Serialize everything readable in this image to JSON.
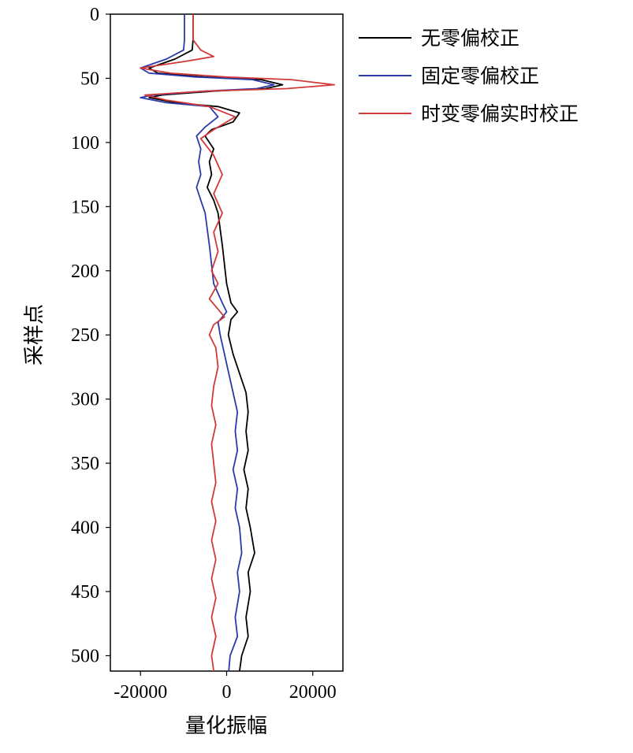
{
  "chart_data": {
    "type": "line",
    "orientation": "vertical-trace",
    "xlabel": "量化振幅",
    "ylabel": "采样点",
    "xlim": [
      -27000,
      27000
    ],
    "ylim": [
      0,
      512
    ],
    "y_inverted": true,
    "x_ticks": [
      -20000,
      0,
      20000
    ],
    "x_tick_labels": [
      "-20000",
      "0",
      "20000"
    ],
    "y_ticks": [
      0,
      50,
      100,
      150,
      200,
      250,
      300,
      350,
      400,
      450,
      500
    ],
    "y_tick_labels": [
      "0",
      "50",
      "100",
      "150",
      "200",
      "250",
      "300",
      "350",
      "400",
      "450",
      "500"
    ],
    "legend_position": "right",
    "grid": false,
    "series": [
      {
        "name": "无零偏校正",
        "color": "#000000",
        "points": [
          [
            -7800,
            0
          ],
          [
            -7800,
            20
          ],
          [
            -8000,
            28
          ],
          [
            -12000,
            35
          ],
          [
            -18000,
            42
          ],
          [
            -16000,
            46
          ],
          [
            -5000,
            49
          ],
          [
            8000,
            51
          ],
          [
            13000,
            55
          ],
          [
            9000,
            58
          ],
          [
            -3000,
            60
          ],
          [
            -15000,
            63
          ],
          [
            -18000,
            65
          ],
          [
            -12000,
            69
          ],
          [
            -2000,
            72
          ],
          [
            3000,
            77
          ],
          [
            1500,
            84
          ],
          [
            -3500,
            90
          ],
          [
            -5000,
            95
          ],
          [
            -3000,
            105
          ],
          [
            -4000,
            115
          ],
          [
            -3500,
            125
          ],
          [
            -4500,
            135
          ],
          [
            -3000,
            145
          ],
          [
            -2000,
            155
          ],
          [
            -1000,
            180
          ],
          [
            0,
            210
          ],
          [
            1000,
            225
          ],
          [
            2500,
            232
          ],
          [
            1000,
            238
          ],
          [
            400,
            250
          ],
          [
            1500,
            265
          ],
          [
            3000,
            280
          ],
          [
            4500,
            295
          ],
          [
            5000,
            310
          ],
          [
            4500,
            325
          ],
          [
            5000,
            340
          ],
          [
            4000,
            355
          ],
          [
            5000,
            370
          ],
          [
            4500,
            385
          ],
          [
            5500,
            400
          ],
          [
            6500,
            420
          ],
          [
            5000,
            435
          ],
          [
            5500,
            450
          ],
          [
            4500,
            470
          ],
          [
            5000,
            485
          ],
          [
            3500,
            500
          ],
          [
            3000,
            512
          ]
        ]
      },
      {
        "name": "固定零偏校正",
        "color": "#2b3aa8",
        "points": [
          [
            -9800,
            0
          ],
          [
            -9800,
            20
          ],
          [
            -10000,
            28
          ],
          [
            -14000,
            35
          ],
          [
            -20000,
            42
          ],
          [
            -18000,
            46
          ],
          [
            -7000,
            49
          ],
          [
            6000,
            51
          ],
          [
            11000,
            55
          ],
          [
            7000,
            58
          ],
          [
            -5000,
            60
          ],
          [
            -17000,
            63
          ],
          [
            -20000,
            65
          ],
          [
            -14000,
            69
          ],
          [
            -4000,
            72
          ],
          [
            -2000,
            80
          ],
          [
            -5000,
            88
          ],
          [
            -7000,
            95
          ],
          [
            -6000,
            105
          ],
          [
            -6500,
            115
          ],
          [
            -6000,
            125
          ],
          [
            -7000,
            135
          ],
          [
            -6000,
            145
          ],
          [
            -5000,
            155
          ],
          [
            -4000,
            180
          ],
          [
            -3000,
            210
          ],
          [
            -1000,
            225
          ],
          [
            0,
            232
          ],
          [
            -2000,
            240
          ],
          [
            -1500,
            250
          ],
          [
            -500,
            265
          ],
          [
            500,
            280
          ],
          [
            1500,
            295
          ],
          [
            2500,
            310
          ],
          [
            2000,
            325
          ],
          [
            2500,
            340
          ],
          [
            1500,
            355
          ],
          [
            2500,
            370
          ],
          [
            2000,
            385
          ],
          [
            3000,
            400
          ],
          [
            3500,
            420
          ],
          [
            2500,
            435
          ],
          [
            3000,
            450
          ],
          [
            2000,
            470
          ],
          [
            2500,
            485
          ],
          [
            800,
            500
          ],
          [
            500,
            512
          ]
        ]
      },
      {
        "name": "时变零偏实时校正",
        "color": "#d23a3a",
        "points": [
          [
            -7800,
            0
          ],
          [
            -7800,
            20
          ],
          [
            -6000,
            28
          ],
          [
            -3000,
            33
          ],
          [
            -10000,
            37
          ],
          [
            -20000,
            42
          ],
          [
            -13000,
            46
          ],
          [
            0,
            49
          ],
          [
            15000,
            51
          ],
          [
            25000,
            55
          ],
          [
            14000,
            58
          ],
          [
            -5000,
            60
          ],
          [
            -19000,
            63
          ],
          [
            -14000,
            67
          ],
          [
            -4000,
            72
          ],
          [
            2000,
            80
          ],
          [
            -3000,
            90
          ],
          [
            -6000,
            97
          ],
          [
            -3000,
            110
          ],
          [
            -1000,
            125
          ],
          [
            -3000,
            140
          ],
          [
            -1000,
            155
          ],
          [
            -3000,
            170
          ],
          [
            -2000,
            185
          ],
          [
            -3500,
            200
          ],
          [
            -2000,
            210
          ],
          [
            -4000,
            222
          ],
          [
            -2000,
            230
          ],
          [
            -500,
            236
          ],
          [
            -3000,
            242
          ],
          [
            -4000,
            250
          ],
          [
            -2500,
            260
          ],
          [
            -2000,
            275
          ],
          [
            -3000,
            290
          ],
          [
            -3500,
            305
          ],
          [
            -2500,
            320
          ],
          [
            -3500,
            335
          ],
          [
            -3000,
            350
          ],
          [
            -2500,
            365
          ],
          [
            -3500,
            380
          ],
          [
            -2500,
            395
          ],
          [
            -3500,
            410
          ],
          [
            -2500,
            425
          ],
          [
            -3500,
            440
          ],
          [
            -2500,
            455
          ],
          [
            -3500,
            470
          ],
          [
            -2500,
            485
          ],
          [
            -3500,
            500
          ],
          [
            -3000,
            512
          ]
        ]
      }
    ]
  }
}
